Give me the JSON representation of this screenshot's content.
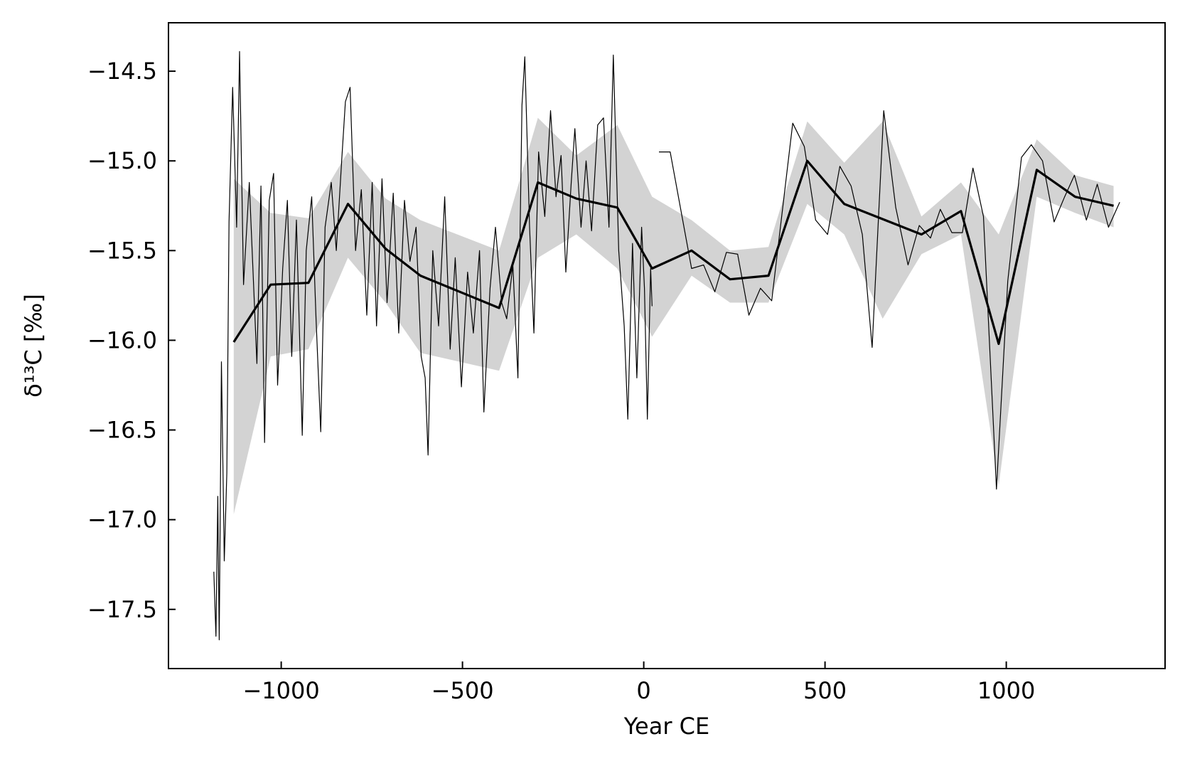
{
  "chart_data": {
    "type": "line",
    "xlabel": "Year CE",
    "ylabel": "δ¹³C [‰]",
    "xlim": [
      -1311,
      1438
    ],
    "ylim": [
      -17.83,
      -14.23
    ],
    "xticks": [
      {
        "value": -1000,
        "label": "−1000"
      },
      {
        "value": -500,
        "label": "−500"
      },
      0,
      500,
      1000
    ],
    "yticks": [
      {
        "value": -14.5,
        "label": "−14.5"
      },
      {
        "value": -15.0,
        "label": "−15.0"
      },
      {
        "value": -15.5,
        "label": "−15.5"
      },
      {
        "value": -16.0,
        "label": "−16.0"
      },
      {
        "value": -16.5,
        "label": "−16.5"
      },
      {
        "value": -17.0,
        "label": "−17.0"
      },
      {
        "value": -17.5,
        "label": "−17.5"
      }
    ],
    "grid": false,
    "band": {
      "color": "#d3d3d3",
      "x": [
        -1131,
        -1029,
        -925,
        -816,
        -712,
        -616,
        -399,
        -292,
        -186,
        -73,
        23,
        132,
        238,
        344,
        451,
        553,
        659,
        766,
        875,
        979,
        1084,
        1190,
        1296
      ],
      "upper": [
        -15.1,
        -15.29,
        -15.32,
        -14.95,
        -15.21,
        -15.33,
        -15.5,
        -14.76,
        -14.97,
        -14.8,
        -15.2,
        -15.33,
        -15.5,
        -15.48,
        -14.78,
        -15.01,
        -14.78,
        -15.31,
        -15.12,
        -15.41,
        -14.88,
        -15.08,
        -15.14
      ],
      "lower": [
        -16.97,
        -16.09,
        -16.05,
        -15.54,
        -15.79,
        -16.07,
        -16.17,
        -15.54,
        -15.41,
        -15.6,
        -15.98,
        -15.64,
        -15.79,
        -15.79,
        -15.24,
        -15.41,
        -15.88,
        -15.52,
        -15.41,
        -16.81,
        -15.2,
        -15.29,
        -15.37
      ]
    },
    "series": [
      {
        "color": "#000000",
        "width": 1.2,
        "x": [
          -1186,
          -1180,
          -1175,
          -1171,
          -1165,
          -1157,
          -1150,
          -1144,
          -1134,
          -1123,
          -1115,
          -1104,
          -1088,
          -1067,
          -1056,
          -1046,
          -1033,
          -1021,
          -1010,
          -996,
          -983,
          -971,
          -958,
          -942,
          -931,
          -916,
          -904,
          -891,
          -879,
          -862,
          -848,
          -833,
          -823,
          -810,
          -795,
          -779,
          -764,
          -749,
          -737,
          -722,
          -708,
          -691,
          -676,
          -660,
          -645,
          -628,
          -614,
          -603,
          -595,
          -582,
          -566,
          -549,
          -534,
          -520,
          -503,
          -486,
          -470,
          -453,
          -441,
          -424,
          -409,
          -392,
          -378,
          -361,
          -347,
          -336,
          -328,
          -315,
          -303,
          -290,
          -273,
          -257,
          -242,
          -228,
          -215,
          -200,
          -190,
          -173,
          -159,
          -144,
          -127,
          -111,
          -96,
          -84,
          -69,
          -54,
          -44,
          -31,
          -19,
          -6,
          2,
          10,
          19,
          23,
          30,
          42,
          73,
          132,
          165,
          196,
          228,
          259,
          290,
          322,
          353,
          411,
          443,
          474,
          507,
          541,
          572,
          603,
          630,
          662,
          695,
          729,
          760,
          791,
          818,
          850,
          879,
          908,
          937,
          973,
          1004,
          1042,
          1069,
          1100,
          1132,
          1161,
          1188,
          1221,
          1251,
          1282,
          1313
        ],
        "values": [
          -17.29,
          -17.65,
          -16.87,
          -17.67,
          -16.12,
          -17.23,
          -16.74,
          -15.34,
          -14.59,
          -15.37,
          -14.39,
          -15.69,
          -15.12,
          -16.13,
          -15.14,
          -16.57,
          -15.22,
          -15.07,
          -16.25,
          -15.6,
          -15.22,
          -16.09,
          -15.33,
          -16.53,
          -15.5,
          -15.2,
          -15.88,
          -16.51,
          -15.37,
          -15.12,
          -15.5,
          -14.99,
          -14.67,
          -14.59,
          -15.5,
          -15.16,
          -15.86,
          -15.12,
          -15.92,
          -15.1,
          -15.79,
          -15.18,
          -15.96,
          -15.22,
          -15.56,
          -15.37,
          -16.09,
          -16.21,
          -16.64,
          -15.5,
          -15.92,
          -15.2,
          -16.05,
          -15.54,
          -16.26,
          -15.62,
          -15.96,
          -15.5,
          -16.4,
          -15.71,
          -15.37,
          -15.79,
          -15.88,
          -15.58,
          -16.21,
          -14.69,
          -14.42,
          -15.37,
          -15.96,
          -14.95,
          -15.31,
          -14.72,
          -15.2,
          -14.97,
          -15.62,
          -15.12,
          -14.82,
          -15.37,
          -15.0,
          -15.39,
          -14.8,
          -14.76,
          -15.37,
          -14.41,
          -15.5,
          -15.92,
          -16.44,
          -15.46,
          -16.21,
          -15.37,
          -15.71,
          -16.44,
          -15.6,
          -15.81,
          null,
          -14.95,
          -14.95,
          -15.6,
          -15.58,
          -15.73,
          -15.51,
          -15.52,
          -15.86,
          -15.71,
          -15.78,
          -14.79,
          -14.92,
          -15.33,
          -15.41,
          -15.03,
          -15.14,
          -15.41,
          -16.04,
          -14.72,
          -15.26,
          -15.58,
          -15.36,
          -15.43,
          -15.27,
          -15.4,
          -15.4,
          -15.04,
          -15.31,
          -16.83,
          -15.67,
          -14.98,
          -14.91,
          -15.0,
          -15.34,
          -15.2,
          -15.08,
          -15.33,
          -15.13,
          -15.37,
          -15.23
        ]
      },
      {
        "color": "#000000",
        "width": 3.2,
        "x": [
          -1131,
          -1029,
          -925,
          -816,
          -712,
          -616,
          -399,
          -292,
          -186,
          -73,
          23,
          132,
          238,
          344,
          451,
          553,
          766,
          875,
          979,
          1084,
          1190,
          1296
        ],
        "values": [
          -16.01,
          -15.69,
          -15.68,
          -15.24,
          -15.49,
          -15.64,
          -15.82,
          -15.12,
          -15.21,
          -15.26,
          -15.6,
          -15.5,
          -15.66,
          -15.64,
          -15.0,
          -15.24,
          -15.41,
          -15.28,
          -16.02,
          -15.05,
          -15.2,
          -15.25
        ]
      }
    ]
  }
}
